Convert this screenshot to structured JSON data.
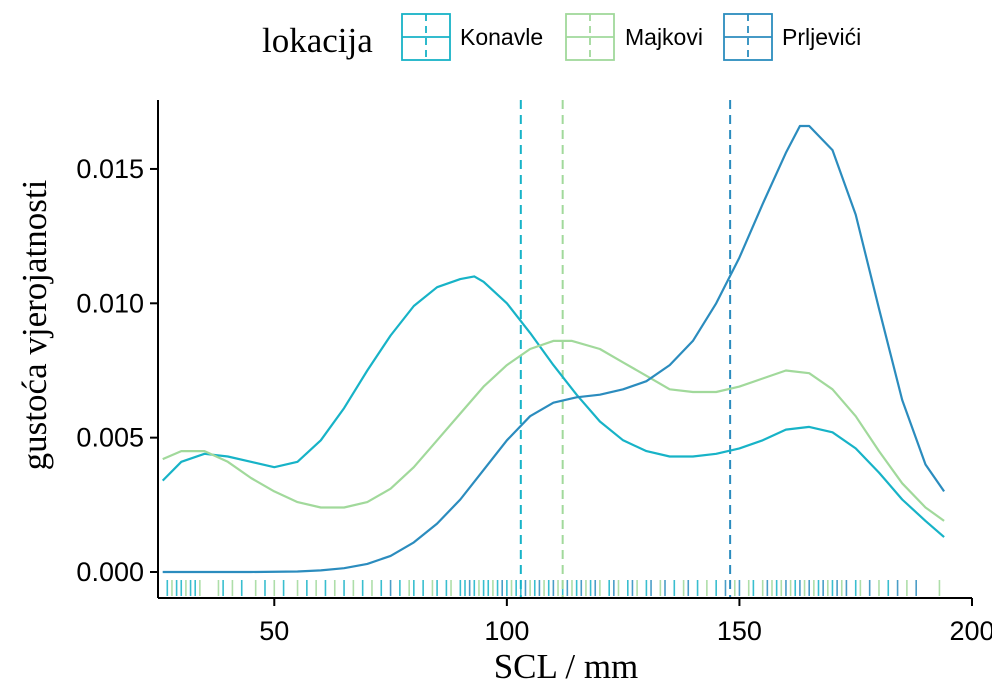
{
  "chart_data": {
    "type": "line",
    "title": "",
    "xlabel": "SCL / mm",
    "ylabel": "gustoća vjerojatnosti",
    "xlim": [
      25,
      200
    ],
    "ylim": [
      0,
      0.0175
    ],
    "x_ticks": [
      50,
      100,
      150,
      200
    ],
    "x_tick_labels": [
      "50",
      "100",
      "150",
      "200"
    ],
    "y_ticks": [
      0.0,
      0.005,
      0.01,
      0.015
    ],
    "y_tick_labels": [
      "0.000",
      "0.005",
      "0.010",
      "0.015"
    ],
    "grid": false,
    "legend": {
      "title": "lokacija",
      "position": "top"
    },
    "series": [
      {
        "name": "Konavle",
        "color": "#17b3c7",
        "mean": 103,
        "x": [
          26,
          30,
          35,
          40,
          45,
          50,
          55,
          60,
          65,
          70,
          75,
          80,
          85,
          90,
          93,
          95,
          100,
          105,
          110,
          115,
          120,
          125,
          130,
          135,
          140,
          145,
          150,
          155,
          160,
          165,
          170,
          175,
          180,
          185,
          190,
          194
        ],
        "values": [
          0.0034,
          0.0041,
          0.0044,
          0.0043,
          0.0041,
          0.0039,
          0.0041,
          0.0049,
          0.0061,
          0.0075,
          0.0088,
          0.0099,
          0.0106,
          0.0109,
          0.011,
          0.0108,
          0.01,
          0.0089,
          0.0077,
          0.0066,
          0.0056,
          0.0049,
          0.0045,
          0.0043,
          0.0043,
          0.0044,
          0.0046,
          0.0049,
          0.0053,
          0.0054,
          0.0052,
          0.0046,
          0.0037,
          0.0027,
          0.0019,
          0.0013
        ]
      },
      {
        "name": "Majkovi",
        "color": "#a1d99b",
        "mean": 112,
        "x": [
          26,
          30,
          35,
          40,
          45,
          50,
          55,
          60,
          65,
          70,
          75,
          80,
          85,
          90,
          95,
          100,
          105,
          110,
          114,
          120,
          125,
          130,
          135,
          140,
          145,
          150,
          155,
          160,
          165,
          170,
          175,
          180,
          185,
          190,
          194
        ],
        "values": [
          0.0042,
          0.0045,
          0.0045,
          0.0041,
          0.0035,
          0.003,
          0.0026,
          0.0024,
          0.0024,
          0.0026,
          0.0031,
          0.0039,
          0.0049,
          0.0059,
          0.0069,
          0.0077,
          0.0083,
          0.0086,
          0.0086,
          0.0083,
          0.0078,
          0.0073,
          0.0068,
          0.0067,
          0.0067,
          0.0069,
          0.0072,
          0.0075,
          0.0074,
          0.0068,
          0.0058,
          0.0045,
          0.0033,
          0.0024,
          0.0019
        ]
      },
      {
        "name": "Prljevići",
        "color": "#2b8cbe",
        "mean": 148,
        "x": [
          26,
          35,
          45,
          55,
          60,
          65,
          70,
          75,
          80,
          85,
          90,
          95,
          100,
          105,
          110,
          115,
          120,
          125,
          130,
          135,
          140,
          145,
          150,
          155,
          160,
          163,
          165,
          170,
          175,
          180,
          185,
          190,
          194
        ],
        "values": [
          0.0,
          0.0,
          0.0,
          2e-05,
          6e-05,
          0.00014,
          0.0003,
          0.0006,
          0.0011,
          0.0018,
          0.0027,
          0.0038,
          0.0049,
          0.0058,
          0.0063,
          0.0065,
          0.0066,
          0.0068,
          0.0071,
          0.0077,
          0.0086,
          0.01,
          0.0117,
          0.0137,
          0.0156,
          0.0166,
          0.0166,
          0.0157,
          0.0133,
          0.0098,
          0.0064,
          0.004,
          0.003
        ]
      }
    ],
    "rug": [
      {
        "x": 27,
        "c": 0
      },
      {
        "x": 28,
        "c": 1
      },
      {
        "x": 29,
        "c": 0
      },
      {
        "x": 30,
        "c": 0
      },
      {
        "x": 31,
        "c": 1
      },
      {
        "x": 32,
        "c": 0
      },
      {
        "x": 33,
        "c": 0
      },
      {
        "x": 34,
        "c": 1
      },
      {
        "x": 38,
        "c": 1
      },
      {
        "x": 39,
        "c": 0
      },
      {
        "x": 41,
        "c": 1
      },
      {
        "x": 43,
        "c": 0
      },
      {
        "x": 46,
        "c": 1
      },
      {
        "x": 48,
        "c": 0
      },
      {
        "x": 50,
        "c": 1
      },
      {
        "x": 52,
        "c": 0
      },
      {
        "x": 55,
        "c": 1
      },
      {
        "x": 57,
        "c": 0
      },
      {
        "x": 59,
        "c": 1
      },
      {
        "x": 61,
        "c": 0
      },
      {
        "x": 63,
        "c": 1
      },
      {
        "x": 65,
        "c": 0
      },
      {
        "x": 67,
        "c": 1
      },
      {
        "x": 69,
        "c": 0
      },
      {
        "x": 71,
        "c": 1
      },
      {
        "x": 73,
        "c": 0
      },
      {
        "x": 75,
        "c": 2
      },
      {
        "x": 77,
        "c": 0
      },
      {
        "x": 79,
        "c": 1
      },
      {
        "x": 80,
        "c": 0
      },
      {
        "x": 82,
        "c": 0
      },
      {
        "x": 84,
        "c": 1
      },
      {
        "x": 85,
        "c": 0
      },
      {
        "x": 87,
        "c": 0
      },
      {
        "x": 88,
        "c": 1
      },
      {
        "x": 90,
        "c": 0
      },
      {
        "x": 91,
        "c": 0
      },
      {
        "x": 92,
        "c": 2
      },
      {
        "x": 93,
        "c": 0
      },
      {
        "x": 94,
        "c": 1
      },
      {
        "x": 95,
        "c": 0
      },
      {
        "x": 96,
        "c": 0
      },
      {
        "x": 97,
        "c": 1
      },
      {
        "x": 98,
        "c": 0
      },
      {
        "x": 99,
        "c": 2
      },
      {
        "x": 100,
        "c": 0
      },
      {
        "x": 101,
        "c": 1
      },
      {
        "x": 102,
        "c": 0
      },
      {
        "x": 103,
        "c": 0
      },
      {
        "x": 104,
        "c": 2
      },
      {
        "x": 105,
        "c": 1
      },
      {
        "x": 106,
        "c": 0
      },
      {
        "x": 107,
        "c": 2
      },
      {
        "x": 108,
        "c": 1
      },
      {
        "x": 109,
        "c": 0
      },
      {
        "x": 110,
        "c": 2
      },
      {
        "x": 111,
        "c": 1
      },
      {
        "x": 112,
        "c": 0
      },
      {
        "x": 113,
        "c": 2
      },
      {
        "x": 114,
        "c": 1
      },
      {
        "x": 115,
        "c": 0
      },
      {
        "x": 116,
        "c": 2
      },
      {
        "x": 117,
        "c": 1
      },
      {
        "x": 118,
        "c": 0
      },
      {
        "x": 119,
        "c": 2
      },
      {
        "x": 120,
        "c": 1
      },
      {
        "x": 122,
        "c": 0
      },
      {
        "x": 123,
        "c": 2
      },
      {
        "x": 124,
        "c": 1
      },
      {
        "x": 126,
        "c": 0
      },
      {
        "x": 127,
        "c": 2
      },
      {
        "x": 128,
        "c": 1
      },
      {
        "x": 130,
        "c": 0
      },
      {
        "x": 131,
        "c": 2
      },
      {
        "x": 133,
        "c": 1
      },
      {
        "x": 134,
        "c": 2
      },
      {
        "x": 136,
        "c": 0
      },
      {
        "x": 138,
        "c": 1
      },
      {
        "x": 139,
        "c": 2
      },
      {
        "x": 141,
        "c": 0
      },
      {
        "x": 143,
        "c": 1
      },
      {
        "x": 145,
        "c": 0
      },
      {
        "x": 147,
        "c": 2
      },
      {
        "x": 149,
        "c": 1
      },
      {
        "x": 150,
        "c": 2
      },
      {
        "x": 152,
        "c": 1
      },
      {
        "x": 153,
        "c": 0
      },
      {
        "x": 155,
        "c": 1
      },
      {
        "x": 156,
        "c": 2
      },
      {
        "x": 157,
        "c": 1
      },
      {
        "x": 158,
        "c": 0
      },
      {
        "x": 159,
        "c": 1
      },
      {
        "x": 160,
        "c": 2
      },
      {
        "x": 161,
        "c": 1
      },
      {
        "x": 162,
        "c": 0
      },
      {
        "x": 163,
        "c": 2
      },
      {
        "x": 164,
        "c": 1
      },
      {
        "x": 165,
        "c": 2
      },
      {
        "x": 166,
        "c": 1
      },
      {
        "x": 167,
        "c": 0
      },
      {
        "x": 168,
        "c": 2
      },
      {
        "x": 169,
        "c": 1
      },
      {
        "x": 170,
        "c": 0
      },
      {
        "x": 171,
        "c": 2
      },
      {
        "x": 172,
        "c": 1
      },
      {
        "x": 173,
        "c": 2
      },
      {
        "x": 175,
        "c": 0
      },
      {
        "x": 176,
        "c": 1
      },
      {
        "x": 178,
        "c": 2
      },
      {
        "x": 180,
        "c": 1
      },
      {
        "x": 182,
        "c": 0
      },
      {
        "x": 184,
        "c": 2
      },
      {
        "x": 186,
        "c": 1
      },
      {
        "x": 188,
        "c": 2
      },
      {
        "x": 193,
        "c": 1
      }
    ]
  }
}
